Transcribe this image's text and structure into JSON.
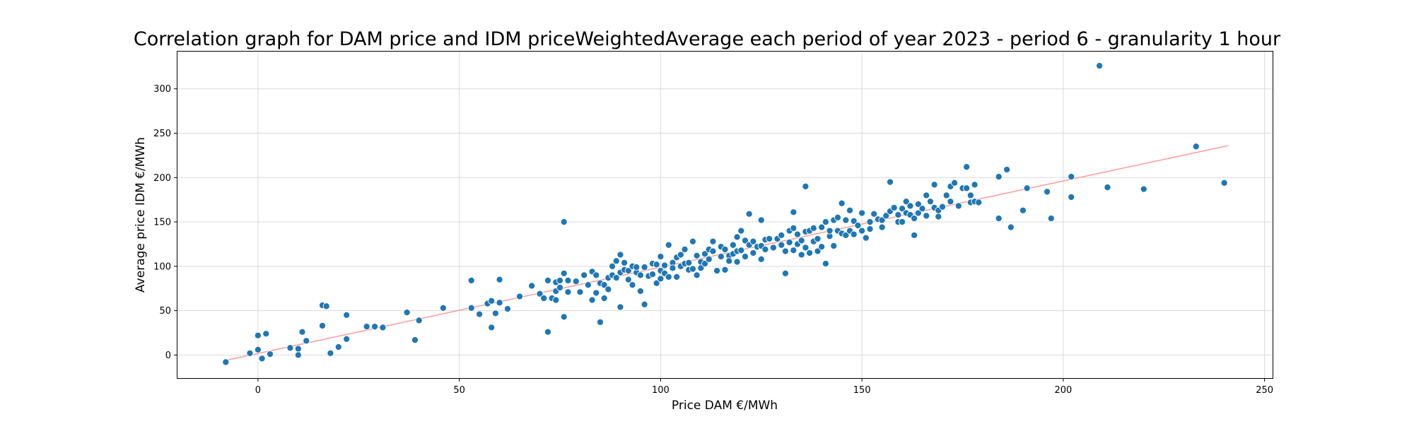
{
  "chart_data": {
    "type": "scatter",
    "title": "Correlation graph for DAM price and IDM priceWeightedAverage each period of year 2023 - period 6 - granularity 1 hour",
    "xlabel": "Price DAM €/MWh",
    "ylabel": "Average price IDM €/MWh",
    "xlim": [
      -20,
      252
    ],
    "ylim": [
      -26,
      342
    ],
    "xticks": [
      0,
      50,
      100,
      150,
      200,
      250
    ],
    "yticks": [
      0,
      50,
      100,
      150,
      200,
      250,
      300
    ],
    "grid": true,
    "point_color": "#1f77b4",
    "trend_color": "#ff9999",
    "trendline": {
      "x": [
        -8,
        241
      ],
      "y": [
        -6,
        236
      ]
    },
    "points": [
      [
        -8,
        -8
      ],
      [
        -2,
        2
      ],
      [
        0,
        22
      ],
      [
        0,
        6
      ],
      [
        1,
        -4
      ],
      [
        2,
        24
      ],
      [
        3,
        1
      ],
      [
        8,
        8
      ],
      [
        10,
        7
      ],
      [
        10,
        0
      ],
      [
        11,
        26
      ],
      [
        12,
        16
      ],
      [
        16,
        56
      ],
      [
        16,
        33
      ],
      [
        17,
        55
      ],
      [
        18,
        2
      ],
      [
        20,
        9
      ],
      [
        22,
        45
      ],
      [
        22,
        18
      ],
      [
        27,
        32
      ],
      [
        29,
        32
      ],
      [
        31,
        31
      ],
      [
        37,
        48
      ],
      [
        39,
        17
      ],
      [
        40,
        39
      ],
      [
        46,
        53
      ],
      [
        53,
        84
      ],
      [
        53,
        53
      ],
      [
        55,
        46
      ],
      [
        57,
        58
      ],
      [
        58,
        31
      ],
      [
        58,
        61
      ],
      [
        59,
        47
      ],
      [
        60,
        85
      ],
      [
        60,
        59
      ],
      [
        62,
        52
      ],
      [
        65,
        66
      ],
      [
        68,
        78
      ],
      [
        70,
        69
      ],
      [
        71,
        64
      ],
      [
        72,
        84
      ],
      [
        72,
        26
      ],
      [
        73,
        64
      ],
      [
        74,
        82
      ],
      [
        74,
        72
      ],
      [
        74,
        62
      ],
      [
        75,
        84
      ],
      [
        75,
        76
      ],
      [
        76,
        92
      ],
      [
        76,
        150
      ],
      [
        76,
        43
      ],
      [
        77,
        84
      ],
      [
        77,
        71
      ],
      [
        79,
        83
      ],
      [
        80,
        71
      ],
      [
        81,
        90
      ],
      [
        82,
        79
      ],
      [
        83,
        94
      ],
      [
        83,
        62
      ],
      [
        84,
        70
      ],
      [
        84,
        90
      ],
      [
        85,
        81
      ],
      [
        85,
        37
      ],
      [
        86,
        79
      ],
      [
        86,
        64
      ],
      [
        87,
        87
      ],
      [
        87,
        74
      ],
      [
        88,
        90
      ],
      [
        88,
        100
      ],
      [
        89,
        106
      ],
      [
        89,
        87
      ],
      [
        90,
        93
      ],
      [
        90,
        113
      ],
      [
        90,
        54
      ],
      [
        91,
        104
      ],
      [
        91,
        96
      ],
      [
        92,
        95
      ],
      [
        92,
        85
      ],
      [
        93,
        100
      ],
      [
        93,
        79
      ],
      [
        94,
        93
      ],
      [
        94,
        99
      ],
      [
        95,
        90
      ],
      [
        95,
        72
      ],
      [
        96,
        99
      ],
      [
        96,
        57
      ],
      [
        97,
        89
      ],
      [
        98,
        91
      ],
      [
        98,
        103
      ],
      [
        99,
        102
      ],
      [
        99,
        81
      ],
      [
        100,
        95
      ],
      [
        100,
        111
      ],
      [
        100,
        86
      ],
      [
        101,
        101
      ],
      [
        101,
        92
      ],
      [
        102,
        124
      ],
      [
        102,
        88
      ],
      [
        103,
        104
      ],
      [
        103,
        98
      ],
      [
        104,
        110
      ],
      [
        104,
        88
      ],
      [
        105,
        113
      ],
      [
        105,
        100
      ],
      [
        106,
        119
      ],
      [
        106,
        103
      ],
      [
        107,
        104
      ],
      [
        107,
        96
      ],
      [
        108,
        128
      ],
      [
        108,
        97
      ],
      [
        109,
        112
      ],
      [
        109,
        90
      ],
      [
        110,
        105
      ],
      [
        110,
        98
      ],
      [
        111,
        114
      ],
      [
        111,
        103
      ],
      [
        112,
        119
      ],
      [
        112,
        108
      ],
      [
        113,
        117
      ],
      [
        113,
        128
      ],
      [
        114,
        95
      ],
      [
        115,
        122
      ],
      [
        115,
        111
      ],
      [
        116,
        119
      ],
      [
        116,
        96
      ],
      [
        117,
        112
      ],
      [
        117,
        106
      ],
      [
        118,
        124
      ],
      [
        118,
        114
      ],
      [
        119,
        133
      ],
      [
        119,
        117
      ],
      [
        119,
        105
      ],
      [
        120,
        140
      ],
      [
        120,
        118
      ],
      [
        121,
        129
      ],
      [
        121,
        111
      ],
      [
        122,
        159
      ],
      [
        122,
        124
      ],
      [
        123,
        128
      ],
      [
        123,
        115
      ],
      [
        124,
        122
      ],
      [
        125,
        152
      ],
      [
        125,
        123
      ],
      [
        125,
        108
      ],
      [
        126,
        130
      ],
      [
        126,
        119
      ],
      [
        127,
        131
      ],
      [
        128,
        121
      ],
      [
        129,
        131
      ],
      [
        130,
        124
      ],
      [
        130,
        135
      ],
      [
        131,
        117
      ],
      [
        131,
        92
      ],
      [
        132,
        140
      ],
      [
        132,
        127
      ],
      [
        133,
        143
      ],
      [
        133,
        118
      ],
      [
        133,
        161
      ],
      [
        134,
        136
      ],
      [
        134,
        125
      ],
      [
        135,
        129
      ],
      [
        135,
        113
      ],
      [
        136,
        139
      ],
      [
        136,
        190
      ],
      [
        136,
        121
      ],
      [
        137,
        140
      ],
      [
        137,
        115
      ],
      [
        138,
        143
      ],
      [
        138,
        128
      ],
      [
        139,
        117
      ],
      [
        139,
        131
      ],
      [
        140,
        144
      ],
      [
        140,
        122
      ],
      [
        141,
        103
      ],
      [
        141,
        150
      ],
      [
        142,
        134
      ],
      [
        142,
        140
      ],
      [
        143,
        152
      ],
      [
        143,
        123
      ],
      [
        144,
        155
      ],
      [
        144,
        140
      ],
      [
        145,
        171
      ],
      [
        145,
        137
      ],
      [
        146,
        152
      ],
      [
        146,
        135
      ],
      [
        147,
        163
      ],
      [
        147,
        140
      ],
      [
        148,
        151
      ],
      [
        148,
        136
      ],
      [
        149,
        146
      ],
      [
        150,
        140
      ],
      [
        150,
        160
      ],
      [
        151,
        132
      ],
      [
        152,
        150
      ],
      [
        152,
        142
      ],
      [
        153,
        159
      ],
      [
        154,
        153
      ],
      [
        155,
        144
      ],
      [
        155,
        152
      ],
      [
        156,
        157
      ],
      [
        157,
        195
      ],
      [
        157,
        162
      ],
      [
        158,
        166
      ],
      [
        159,
        150
      ],
      [
        159,
        158
      ],
      [
        160,
        165
      ],
      [
        160,
        150
      ],
      [
        161,
        160
      ],
      [
        161,
        173
      ],
      [
        162,
        158
      ],
      [
        162,
        168
      ],
      [
        163,
        135
      ],
      [
        163,
        154
      ],
      [
        164,
        160
      ],
      [
        164,
        170
      ],
      [
        165,
        165
      ],
      [
        166,
        180
      ],
      [
        166,
        157
      ],
      [
        167,
        173
      ],
      [
        168,
        192
      ],
      [
        168,
        166
      ],
      [
        169,
        156
      ],
      [
        169,
        163
      ],
      [
        170,
        167
      ],
      [
        171,
        180
      ],
      [
        172,
        190
      ],
      [
        172,
        173
      ],
      [
        173,
        194
      ],
      [
        174,
        168
      ],
      [
        175,
        188
      ],
      [
        176,
        212
      ],
      [
        176,
        188
      ],
      [
        177,
        172
      ],
      [
        177,
        180
      ],
      [
        178,
        173
      ],
      [
        178,
        192
      ],
      [
        179,
        172
      ],
      [
        184,
        201
      ],
      [
        184,
        154
      ],
      [
        186,
        209
      ],
      [
        187,
        144
      ],
      [
        190,
        163
      ],
      [
        191,
        188
      ],
      [
        196,
        184
      ],
      [
        197,
        154
      ],
      [
        202,
        178
      ],
      [
        202,
        201
      ],
      [
        209,
        326
      ],
      [
        211,
        189
      ],
      [
        220,
        187
      ],
      [
        233,
        235
      ],
      [
        240,
        194
      ]
    ]
  }
}
